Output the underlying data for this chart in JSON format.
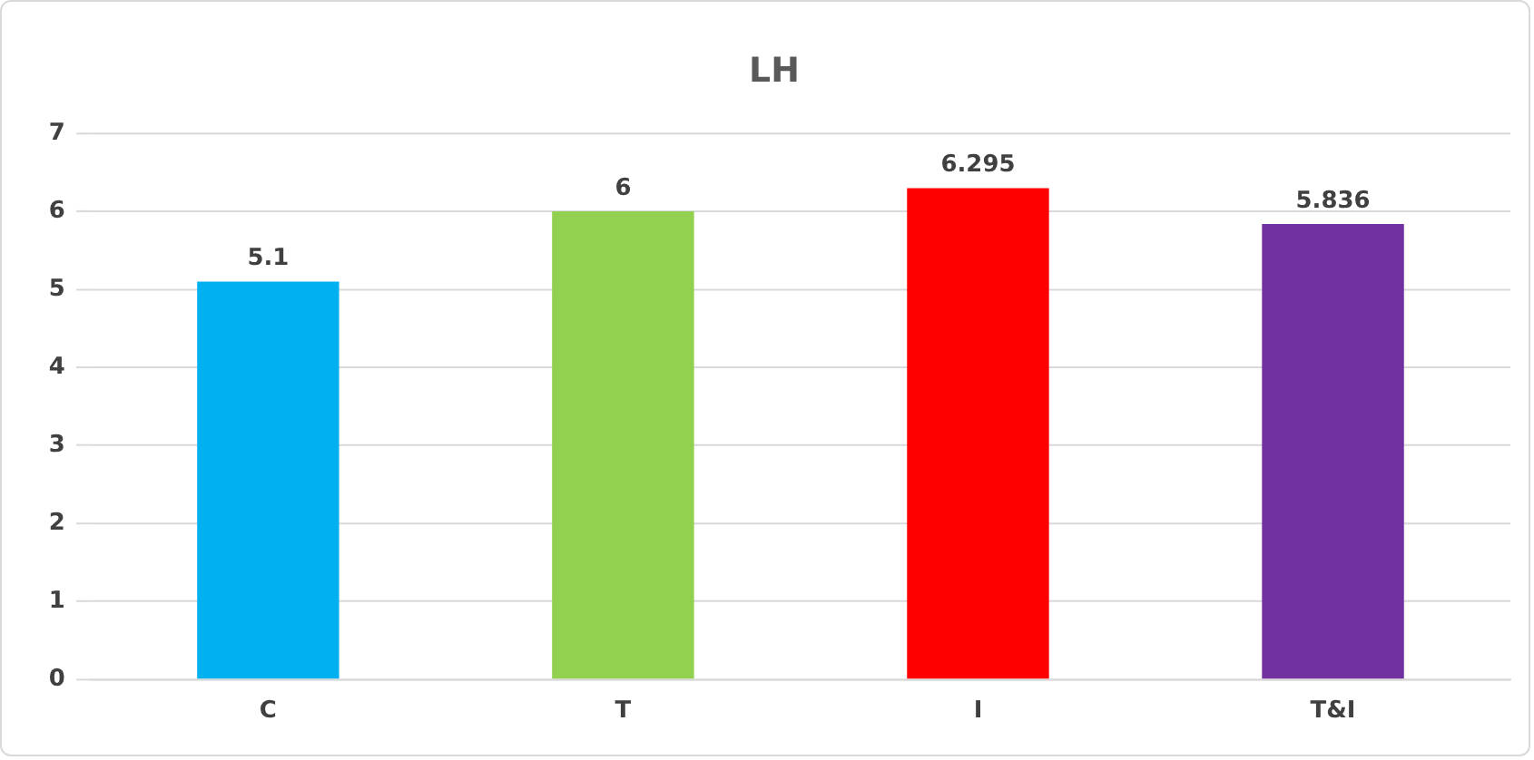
{
  "chart_data": {
    "type": "bar",
    "title": "LH",
    "categories": [
      "C",
      "T",
      "I",
      "T&I"
    ],
    "values": [
      5.1,
      6,
      6.295,
      5.836
    ],
    "colors": [
      "#00b0f0",
      "#92d050",
      "#ff0000",
      "#7030a0"
    ],
    "ylim": [
      0,
      7
    ],
    "yticks": [
      0,
      1,
      2,
      3,
      4,
      5,
      6,
      7
    ],
    "grid": "y",
    "data_labels": true
  }
}
